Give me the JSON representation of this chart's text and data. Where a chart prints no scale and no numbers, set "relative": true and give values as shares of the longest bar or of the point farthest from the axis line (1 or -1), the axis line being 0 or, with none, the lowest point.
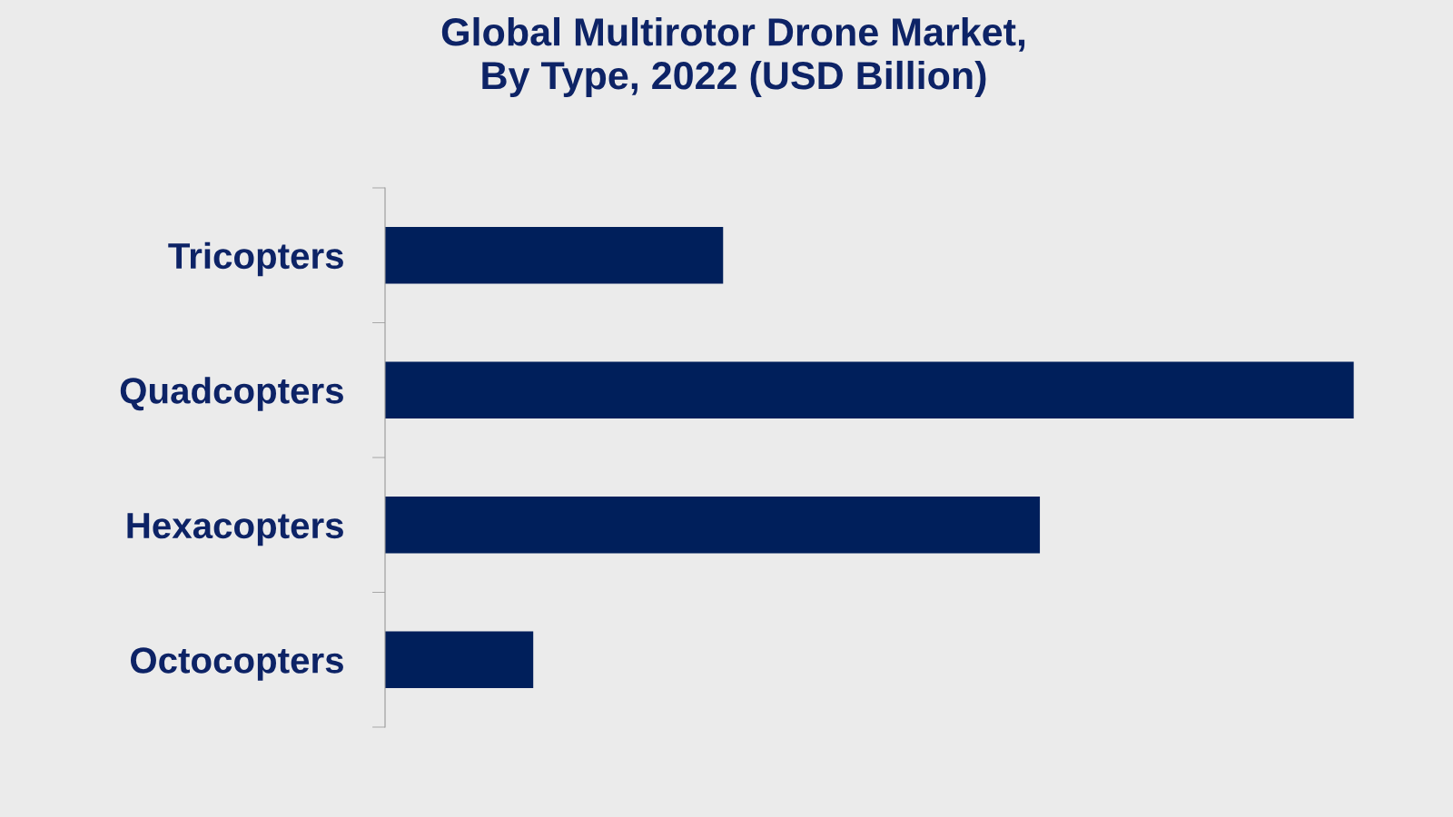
{
  "chart_data": {
    "type": "bar",
    "orientation": "horizontal",
    "relative": true,
    "title": "Global Multirotor Drone Market,\nBy Type, 2022 (USD Billion)",
    "categories": [
      "Tricopters",
      "Quadcopters",
      "Hexacopters",
      "Octocopters"
    ],
    "values": [
      0.349,
      1,
      0.676,
      0.153
    ],
    "color": "#001f5b",
    "grid": false,
    "legend": false
  }
}
